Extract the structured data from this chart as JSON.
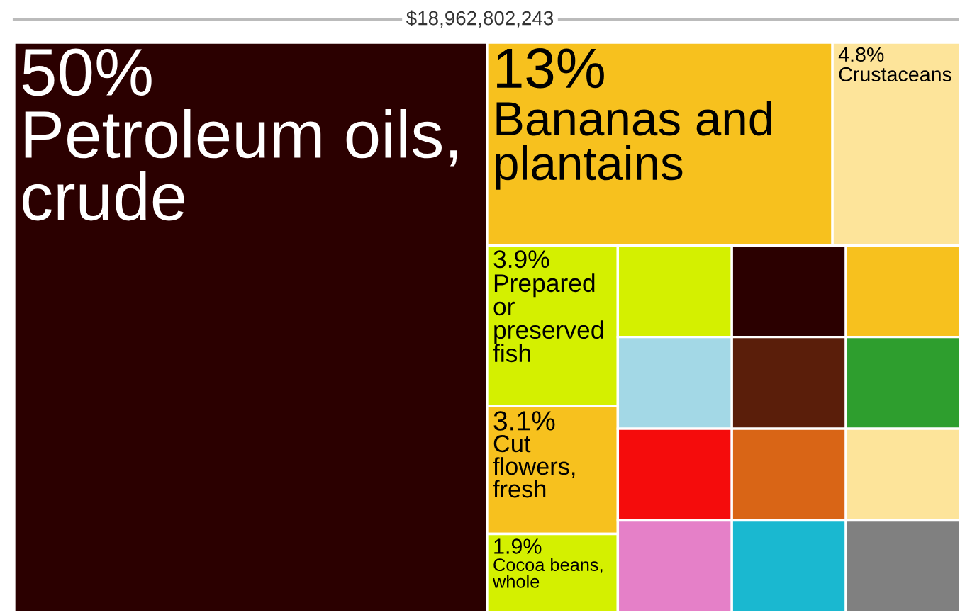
{
  "chart_data": {
    "type": "other",
    "title": "$18,962,802,243",
    "categories": [
      "Petroleum oils, crude",
      "Bananas and plantains",
      "Crustaceans",
      "Prepared or preserved fish",
      "Cut flowers, fresh",
      "Cocoa beans, whole",
      null,
      null,
      null,
      null,
      null,
      null,
      null,
      null,
      null,
      null,
      null,
      null
    ],
    "values": [
      50,
      13,
      4.8,
      3.9,
      3.1,
      1.9,
      null,
      null,
      null,
      null,
      null,
      null,
      null,
      null,
      null,
      null,
      null,
      null
    ],
    "value_labels": [
      "50%",
      "13%",
      "4.8%",
      "3.9%",
      "3.1%",
      "1.9%",
      null,
      null,
      null,
      null,
      null,
      null,
      null,
      null,
      null,
      null,
      null,
      null
    ],
    "colors": [
      "#2b0000",
      "#f7c11e",
      "#fde49a",
      "#d4f000",
      "#f7c11e",
      "#d4f000",
      "#d4f000",
      "#2b0000",
      "#f7c11e",
      "#a3d8e6",
      "#f50c0c",
      "#e580c8",
      "#5a1e0a",
      "#2e9e2e",
      "#d96516",
      "#1ab8d0",
      "#fde49a",
      "#808080"
    ]
  }
}
